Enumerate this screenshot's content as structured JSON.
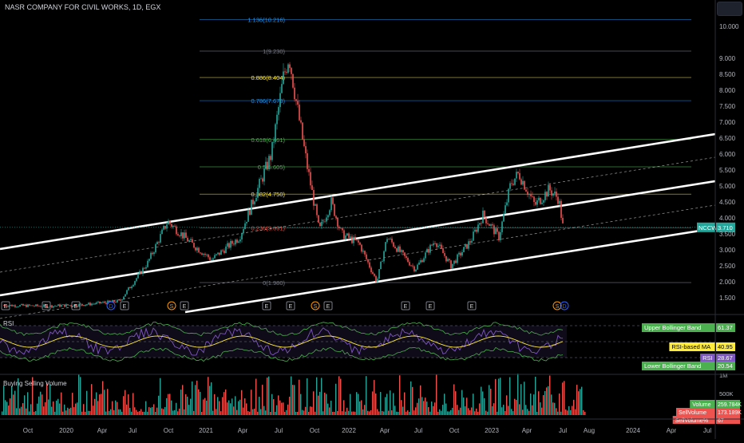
{
  "header": {
    "title": "NASR COMPANY FOR CIVIL WORKS, 1D, EGX"
  },
  "colors": {
    "up": "#26a69a",
    "down": "#ef5350",
    "background": "#000000",
    "axis_text": "#b2b5be",
    "fib_blue": "#2196f3",
    "fib_yellow": "#ffeb3b",
    "fib_green": "#4caf50",
    "fib_red": "#f44336",
    "channel": "#ffffff",
    "rsi_line": "#7e57c2",
    "rsi_ma": "#ffeb3b",
    "bb": "#4caf50"
  },
  "price_axis": {
    "ticks": [
      "10.000",
      "9.000",
      "8.500",
      "8.000",
      "7.500",
      "7.000",
      "6.500",
      "6.000",
      "5.500",
      "5.000",
      "4.500",
      "4.000",
      "3.500",
      "3.000",
      "2.500",
      "2.000",
      "1.500"
    ]
  },
  "ticker_badge": {
    "symbol": "NCCW",
    "price": "3.710"
  },
  "fib_levels": [
    {
      "label": "1.136(10.216)",
      "price": 10.216,
      "color": "#2196f3"
    },
    {
      "label": "1(9.230)",
      "price": 9.23,
      "color": "#787b86"
    },
    {
      "label": "0.886(8.404)",
      "price": 8.404,
      "color": "#ffeb3b"
    },
    {
      "label": "0.786(7.678)",
      "price": 7.678,
      "color": "#2196f3"
    },
    {
      "label": "0.618(6.461)",
      "price": 6.461,
      "color": "#4caf50"
    },
    {
      "label": "0.5(5.605)",
      "price": 5.605,
      "color": "#4caf50"
    },
    {
      "label": "0.382(4.750)",
      "price": 4.75,
      "color": "#ffeb3b"
    },
    {
      "label": "0.236(3.691)",
      "price": 3.691,
      "color": "#f44336"
    },
    {
      "label": "0(1.980)",
      "price": 1.98,
      "color": "#787b86"
    }
  ],
  "events": [
    {
      "type": "E",
      "x": 7
    },
    {
      "type": "E",
      "x": 58
    },
    {
      "type": "E",
      "x": 95
    },
    {
      "type": "D",
      "x": 139
    },
    {
      "type": "E",
      "x": 156
    },
    {
      "type": "S",
      "x": 215
    },
    {
      "type": "E",
      "x": 231
    },
    {
      "type": "E",
      "x": 334
    },
    {
      "type": "E",
      "x": 364
    },
    {
      "type": "S",
      "x": 395
    },
    {
      "type": "E",
      "x": 411
    },
    {
      "type": "E",
      "x": 508
    },
    {
      "type": "E",
      "x": 539
    },
    {
      "type": "E",
      "x": 591
    },
    {
      "type": "S",
      "x": 698
    },
    {
      "type": "D",
      "x": 707
    }
  ],
  "rsi_panel": {
    "title": "RSI",
    "badges": [
      {
        "label": "Upper Bollinger Band",
        "value": "61.37",
        "color": "#4caf50"
      },
      {
        "label": "RSI-based MA",
        "value": "40.95",
        "color": "#ffeb3b"
      },
      {
        "label": "RSI",
        "value": "28.67",
        "color": "#7e57c2"
      },
      {
        "label": "Lower Bollinger Band",
        "value": "20.54",
        "color": "#4caf50"
      }
    ]
  },
  "volume_panel": {
    "title": "Buying Selling Volume",
    "axis_ticks": [
      "1M",
      "500K"
    ],
    "badges": [
      {
        "label": "Volume",
        "value": "259.784K",
        "color": "#4caf50"
      },
      {
        "label": "SellVolume",
        "value": "173.189K",
        "color": "#ef5350"
      },
      {
        "label": "SellVolume%",
        "value": "67",
        "color": "#ef5350"
      }
    ]
  },
  "time_axis": {
    "labels": [
      "Oct",
      "2020",
      "Apr",
      "Jul",
      "Oct",
      "2021",
      "Apr",
      "Jul",
      "Oct",
      "2022",
      "Apr",
      "Jul",
      "Oct",
      "2023",
      "Apr",
      "Jul",
      "Aug",
      "2024",
      "Apr",
      "Jul"
    ]
  }
}
